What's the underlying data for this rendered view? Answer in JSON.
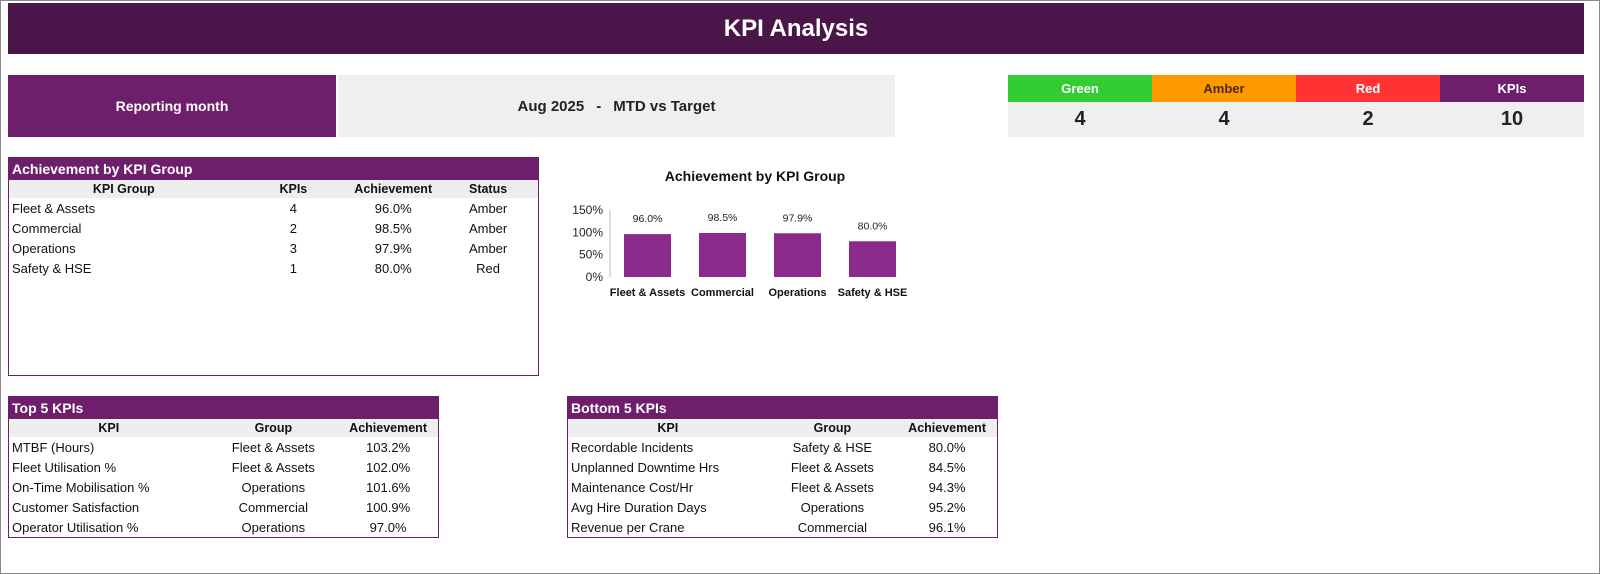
{
  "header": {
    "title": "KPI Analysis"
  },
  "reporting": {
    "label": "Reporting month",
    "month": "Aug 2025",
    "separator": "-",
    "mode": "MTD vs Target"
  },
  "summary": [
    {
      "label": "Green",
      "value": "4",
      "color": "#33cc33",
      "text_color": "#ffffff"
    },
    {
      "label": "Amber",
      "value": "4",
      "color": "#ff9900",
      "text_color": "#4d2a00"
    },
    {
      "label": "Red",
      "value": "2",
      "color": "#ff3333",
      "text_color": "#ffffff"
    },
    {
      "label": "KPIs",
      "value": "10",
      "color": "#6e1f6b",
      "text_color": "#ffffff"
    }
  ],
  "group_table": {
    "title": "Achievement by KPI Group",
    "headers": [
      "KPI Group",
      "KPIs",
      "Achievement",
      "Status"
    ],
    "rows": [
      [
        "Fleet & Assets",
        "4",
        "96.0%",
        "Amber"
      ],
      [
        "Commercial",
        "2",
        "98.5%",
        "Amber"
      ],
      [
        "Operations",
        "3",
        "97.9%",
        "Amber"
      ],
      [
        "Safety & HSE",
        "1",
        "80.0%",
        "Red"
      ]
    ]
  },
  "chart_data": {
    "type": "bar",
    "title": "Achievement by KPI Group",
    "categories": [
      "Fleet & Assets",
      "Commercial",
      "Operations",
      "Safety & HSE"
    ],
    "values": [
      96.0,
      98.5,
      97.9,
      80.0
    ],
    "data_labels": [
      "96.0%",
      "98.5%",
      "97.9%",
      "80.0%"
    ],
    "yticks": [
      "0%",
      "50%",
      "100%",
      "150%"
    ],
    "ylim": [
      0,
      150
    ],
    "bar_color": "#8b2a8b",
    "grid": false
  },
  "top5": {
    "title": "Top 5 KPIs",
    "headers": [
      "KPI",
      "Group",
      "Achievement"
    ],
    "rows": [
      [
        "MTBF (Hours)",
        "Fleet & Assets",
        "103.2%"
      ],
      [
        "Fleet Utilisation %",
        "Fleet & Assets",
        "102.0%"
      ],
      [
        "On-Time Mobilisation %",
        "Operations",
        "101.6%"
      ],
      [
        "Customer Satisfaction",
        "Commercial",
        "100.9%"
      ],
      [
        "Operator Utilisation %",
        "Operations",
        "97.0%"
      ]
    ]
  },
  "bottom5": {
    "title": "Bottom 5 KPIs",
    "headers": [
      "KPI",
      "Group",
      "Achievement"
    ],
    "rows": [
      [
        "Recordable Incidents",
        "Safety & HSE",
        "80.0%"
      ],
      [
        "Unplanned Downtime Hrs",
        "Fleet & Assets",
        "84.5%"
      ],
      [
        "Maintenance Cost/Hr",
        "Fleet & Assets",
        "94.3%"
      ],
      [
        "Avg Hire Duration Days",
        "Operations",
        "95.2%"
      ],
      [
        "Revenue per Crane",
        "Commercial",
        "96.1%"
      ]
    ]
  }
}
